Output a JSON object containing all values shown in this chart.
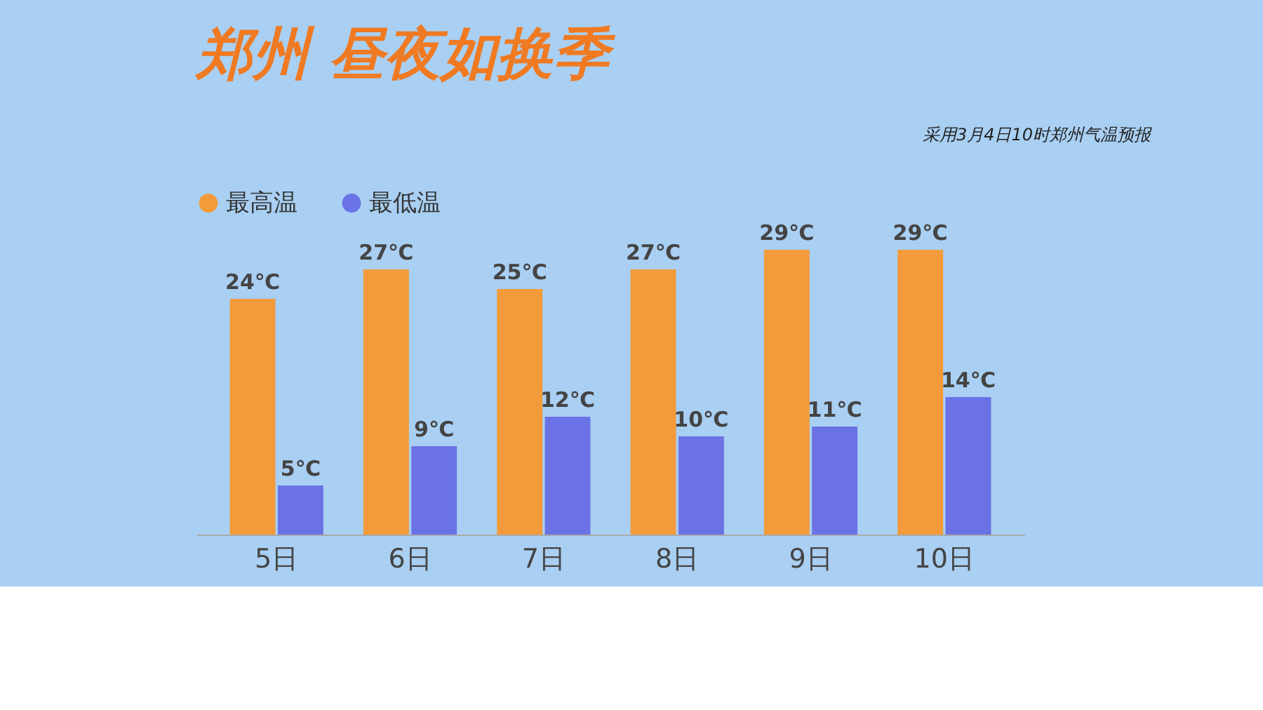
{
  "chart_data": {
    "type": "bar",
    "title": "郑州  昼夜如换季",
    "annotations": [
      "采用3月4日10时郑州气温预报"
    ],
    "categories": [
      "5日",
      "6日",
      "7日",
      "8日",
      "9日",
      "10日"
    ],
    "series": [
      {
        "name": "最高温",
        "color": "#f39a3a",
        "values": [
          24,
          27,
          25,
          27,
          29,
          29
        ],
        "value_labels": [
          "24℃",
          "27℃",
          "25℃",
          "27℃",
          "29℃",
          "29℃"
        ]
      },
      {
        "name": "最低温",
        "color": "#6a72e6",
        "values": [
          5,
          9,
          12,
          10,
          11,
          14
        ],
        "value_labels": [
          "5℃",
          "9℃",
          "12℃",
          "10℃",
          "11℃",
          "14℃"
        ]
      }
    ],
    "legend": "top",
    "grid": false
  }
}
